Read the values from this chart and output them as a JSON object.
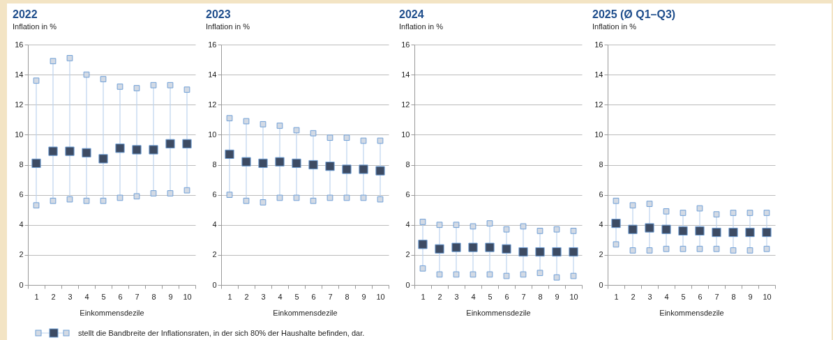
{
  "chart_data": [
    {
      "type": "scatter",
      "title": "2022",
      "subtitle": "Inflation in %",
      "xlabel": "Einkommensdezile",
      "categories": [
        "1",
        "2",
        "3",
        "4",
        "5",
        "6",
        "7",
        "8",
        "9",
        "10"
      ],
      "ylim": [
        0,
        16
      ],
      "yticks": [
        0,
        2,
        4,
        6,
        8,
        10,
        12,
        14,
        16
      ],
      "grid": "y",
      "marker": "square",
      "legend": false,
      "annotations": [
        "stellt die Bandbreite der Inflationsraten, in der sich 80% der Haushalte befinden, dar."
      ],
      "series": [
        {
          "color": "#d3dae4",
          "values": [
            13.6,
            14.9,
            15.1,
            14.0,
            13.7,
            13.2,
            13.1,
            13.3,
            13.3,
            13.0
          ]
        },
        {
          "color": "#3d4b63",
          "values": [
            8.1,
            8.9,
            8.9,
            8.8,
            8.4,
            9.1,
            9.0,
            9.0,
            9.4,
            9.4
          ]
        },
        {
          "color": "#d3dae4",
          "values": [
            5.3,
            5.6,
            5.7,
            5.6,
            5.6,
            5.8,
            5.9,
            6.1,
            6.1,
            6.3
          ]
        }
      ]
    },
    {
      "type": "scatter",
      "title": "2023",
      "subtitle": "Inflation in %",
      "xlabel": "Einkommensdezile",
      "categories": [
        "1",
        "2",
        "3",
        "4",
        "5",
        "6",
        "7",
        "8",
        "9",
        "10"
      ],
      "ylim": [
        0,
        16
      ],
      "yticks": [
        0,
        2,
        4,
        6,
        8,
        10,
        12,
        14,
        16
      ],
      "grid": "y",
      "marker": "square",
      "legend": false,
      "series": [
        {
          "color": "#d3dae4",
          "values": [
            11.1,
            10.9,
            10.7,
            10.6,
            10.3,
            10.1,
            9.8,
            9.8,
            9.6,
            9.6
          ]
        },
        {
          "color": "#3d4b63",
          "values": [
            8.7,
            8.2,
            8.1,
            8.2,
            8.1,
            8.0,
            7.9,
            7.7,
            7.7,
            7.6
          ]
        },
        {
          "color": "#d3dae4",
          "values": [
            6.0,
            5.6,
            5.5,
            5.8,
            5.8,
            5.6,
            5.8,
            5.8,
            5.8,
            5.7
          ]
        }
      ]
    },
    {
      "type": "scatter",
      "title": "2024",
      "subtitle": "Inflation in %",
      "xlabel": "Einkommensdezile",
      "categories": [
        "1",
        "2",
        "3",
        "4",
        "5",
        "6",
        "7",
        "8",
        "9",
        "10"
      ],
      "ylim": [
        0,
        16
      ],
      "yticks": [
        0,
        2,
        4,
        6,
        8,
        10,
        12,
        14,
        16
      ],
      "grid": "y",
      "marker": "square",
      "legend": false,
      "series": [
        {
          "color": "#d3dae4",
          "values": [
            4.2,
            4.0,
            4.0,
            3.9,
            4.1,
            3.7,
            3.9,
            3.6,
            3.7,
            3.6
          ]
        },
        {
          "color": "#3d4b63",
          "values": [
            2.7,
            2.4,
            2.5,
            2.5,
            2.5,
            2.4,
            2.2,
            2.2,
            2.2,
            2.2
          ]
        },
        {
          "color": "#d3dae4",
          "values": [
            1.1,
            0.7,
            0.7,
            0.7,
            0.7,
            0.6,
            0.7,
            0.8,
            0.5,
            0.6
          ]
        }
      ]
    },
    {
      "type": "scatter",
      "title": "2025 (Ø Q1–Q3)",
      "subtitle": "Inflation in %",
      "xlabel": "Einkommensdezile",
      "categories": [
        "1",
        "2",
        "3",
        "4",
        "5",
        "6",
        "7",
        "8",
        "9",
        "10"
      ],
      "ylim": [
        0,
        16
      ],
      "yticks": [
        0,
        2,
        4,
        6,
        8,
        10,
        12,
        14,
        16
      ],
      "grid": "y",
      "marker": "square",
      "legend": false,
      "series": [
        {
          "color": "#d3dae4",
          "values": [
            5.6,
            5.3,
            5.4,
            4.9,
            4.8,
            5.1,
            4.7,
            4.8,
            4.8,
            4.8
          ]
        },
        {
          "color": "#3d4b63",
          "values": [
            4.1,
            3.7,
            3.8,
            3.7,
            3.6,
            3.6,
            3.5,
            3.5,
            3.5,
            3.5
          ]
        },
        {
          "color": "#d3dae4",
          "values": [
            2.7,
            2.3,
            2.3,
            2.4,
            2.4,
            2.4,
            2.4,
            2.3,
            2.3,
            2.4
          ]
        }
      ]
    }
  ]
}
